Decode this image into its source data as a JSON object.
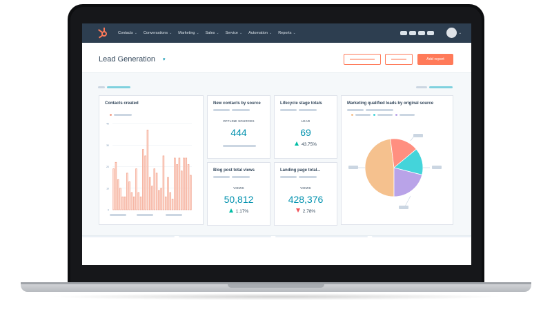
{
  "nav": {
    "items": [
      "Contacts",
      "Conversations",
      "Marketing",
      "Sales",
      "Service",
      "Automation",
      "Reports"
    ],
    "caret": "⌄"
  },
  "header": {
    "title": "Lead Generation",
    "title_caret": "▾",
    "add_report_label": "Add report"
  },
  "cards": {
    "contacts_created": {
      "title": "Contacts created"
    },
    "new_contacts": {
      "title": "New contacts by source",
      "label": "OFFLINE SOURCES",
      "value": "444"
    },
    "lifecycle": {
      "title": "Lifecycle stage totals",
      "label": "LEAD",
      "value": "69",
      "delta": "43.75%"
    },
    "blog_views": {
      "title": "Blog post total views",
      "label": "VIEWS",
      "value": "50,812",
      "delta": "1.17%"
    },
    "landing_page": {
      "title": "Landing page total...",
      "label": "VIEWS",
      "value": "428,376",
      "delta": "2.78%"
    },
    "mql": {
      "title": "Marketing qualified leads by original source"
    }
  },
  "chart_data": [
    {
      "type": "bar",
      "title": "Contacts created",
      "y_ticks": [
        "40",
        "30",
        "20",
        "10",
        "0"
      ],
      "ylim": [
        0,
        40
      ],
      "values": [
        19,
        22,
        14,
        10,
        6,
        6,
        17,
        13,
        8,
        6,
        19,
        8,
        6,
        28,
        25,
        37,
        15,
        11,
        19,
        17,
        9,
        10,
        25,
        6,
        15,
        8,
        5,
        24,
        21,
        24,
        18,
        24,
        24,
        21,
        16
      ],
      "colors": {
        "outline": "#f2a08a",
        "fill": "#ffe0d6"
      }
    },
    {
      "type": "pie",
      "title": "Marketing qualified leads by original source",
      "values": [
        48,
        16,
        15,
        21
      ],
      "colors": [
        "#f5c18e",
        "#ff8f80",
        "#44d4da",
        "#b9a3e8"
      ]
    }
  ],
  "colors": {
    "nav_bg": "#2d3e50",
    "accent": "#ff7a59",
    "metric": "#0091ae",
    "up": "#00bda5",
    "down": "#f2545b"
  }
}
